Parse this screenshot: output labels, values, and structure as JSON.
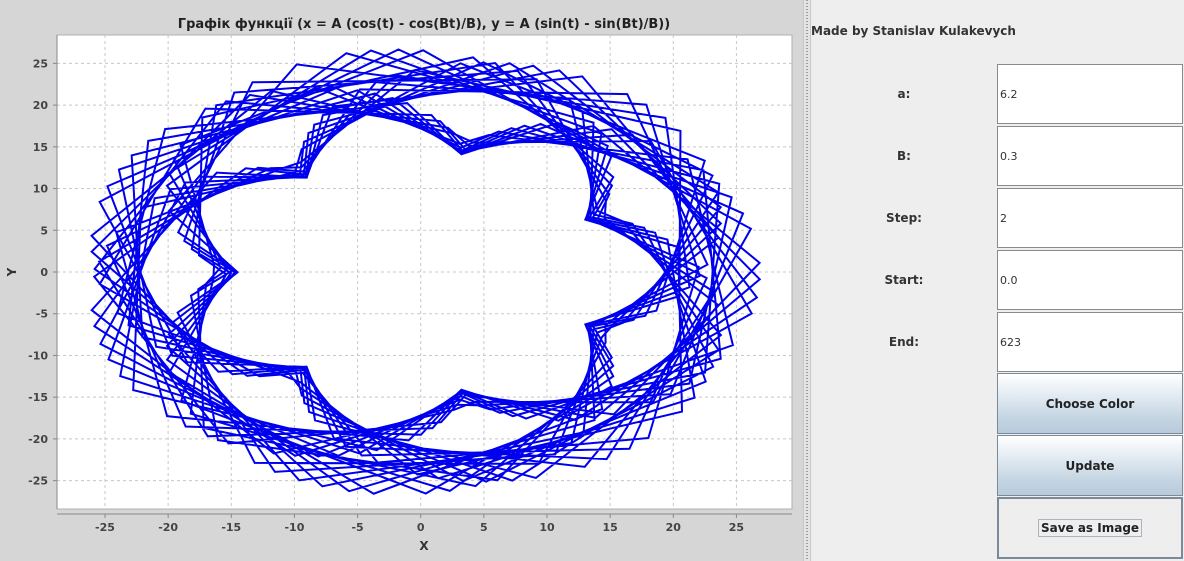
{
  "chart": {
    "title": "Графік функції (x = A (cos(t) - cos(Bt)/B), y = A (sin(t) - sin(Bt)/B))",
    "xlabel": "X",
    "ylabel": "Y",
    "line_color": "#0000ee"
  },
  "chart_data": {
    "type": "line",
    "title": "Графік функції (x = A (cos(t) - cos(Bt)/B), y = A (sin(t) - sin(Bt)/B))",
    "xlabel": "X",
    "ylabel": "Y",
    "xlim": [
      -28.8,
      29.4
    ],
    "ylim": [
      -28.4,
      28.4
    ],
    "x_ticks": [
      -25,
      -20,
      -15,
      -10,
      -5,
      0,
      5,
      10,
      15,
      20,
      25
    ],
    "y_ticks": [
      25,
      20,
      15,
      10,
      5,
      0,
      -5,
      -10,
      -15,
      -20,
      -25
    ],
    "grid": true,
    "series": [
      {
        "A": 6.2,
        "B": 0.3,
        "t_start": 0.0,
        "t_end": 623,
        "t_step": 2,
        "color": "#0000ee"
      }
    ]
  },
  "controls": {
    "author": "Made by Stanislav Kulakevych",
    "params": [
      {
        "label": "a:",
        "value": "6.2"
      },
      {
        "label": "B:",
        "value": "0.3"
      },
      {
        "label": "Step:",
        "value": "2"
      },
      {
        "label": "Start:",
        "value": "0.0"
      },
      {
        "label": "End:",
        "value": "623"
      }
    ],
    "choose_color_label": "Choose Color",
    "update_label": "Update",
    "save_label": "Save as Image"
  }
}
